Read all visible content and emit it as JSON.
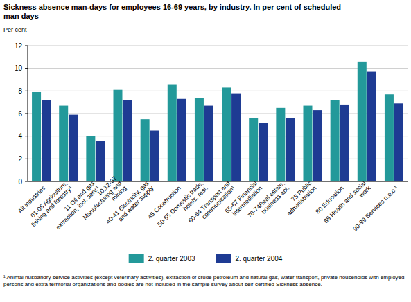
{
  "chart_data": {
    "type": "bar",
    "title": "Sickness absence man-days for employees 16-69 years, by industry. In per cent of scheduled man days",
    "y_label": "Per cent",
    "categories": [
      "All industries",
      "01-05 Agriculture, fishing and forestry¹",
      "11 Oil and gas extraction, incl. serv.¹",
      "10,12-37 Manufacturing and mining",
      "40-41 Electricity, gas and water supply",
      "45 Construction",
      "50-55 Domestic trade, hotels, rest.",
      "60-64 Transport and communication¹",
      "65-67 Financial intermediation",
      "70-74Real estate, business act.",
      "75 Public administration",
      "80 Education",
      "85 Health and social work",
      "90-99 Services n.e.c.¹"
    ],
    "series": [
      {
        "name": "2. quarter 2003",
        "color": "#23999a",
        "values": [
          7.9,
          6.7,
          4.0,
          8.1,
          5.5,
          8.6,
          7.4,
          8.3,
          5.6,
          6.5,
          6.7,
          7.2,
          10.6,
          7.7
        ]
      },
      {
        "name": "2. quarter 2004",
        "color": "#1e3b93",
        "values": [
          7.2,
          5.9,
          3.6,
          7.2,
          4.5,
          7.3,
          6.7,
          7.8,
          5.2,
          5.6,
          6.3,
          6.8,
          9.7,
          6.9
        ]
      }
    ],
    "ylim": [
      0,
      12
    ],
    "yticks": [
      0,
      2,
      4,
      6,
      8,
      10,
      12
    ],
    "grid": true,
    "legend": "bottom",
    "annotations": [
      "¹ Animal husbandry service activities (except veterinary activities), extraction of crude petroleum and natural gas, water transport, private households with employed persons and extra territorial organizations and bodies are not included in the sample survey about self-certified Sickness absence."
    ]
  }
}
